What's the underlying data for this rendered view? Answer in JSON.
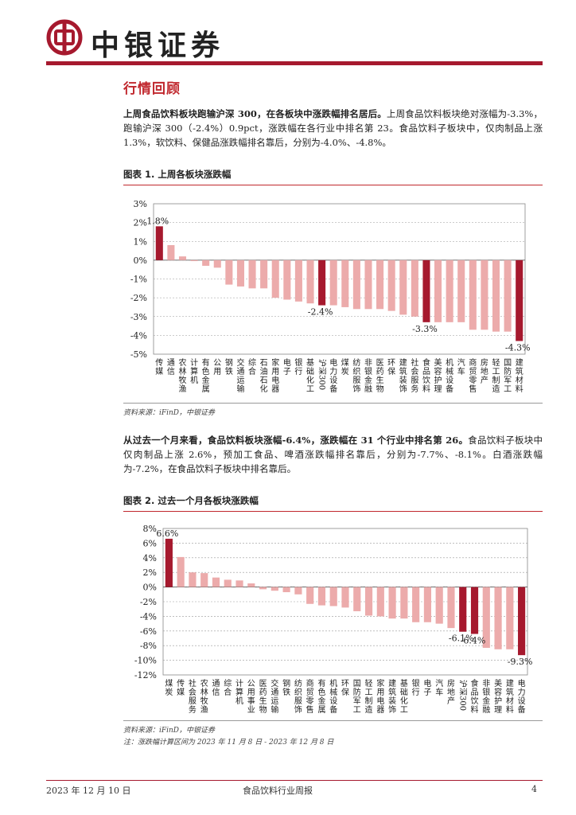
{
  "header": {
    "brand": "中银证券",
    "colors": {
      "brand_red": "#a6192e"
    }
  },
  "section_title": "行情回顾",
  "para1": {
    "bold": "上周食品饮料板块跑输沪深 300，在各板块中涨跌幅排名居后。",
    "text": "上周食品饮料板块绝对涨幅为-3.3%，跑输沪深 300（-2.4%）0.9pct，涨跌幅在各行业中排名第 23。食品饮料子板块中，仅肉制品上涨 1.3%，软饮料、保健品涨跌幅排名靠后，分别为-4.0%、-4.8%。"
  },
  "fig1": {
    "title": "图表 1. 上周各板块涨跌幅",
    "source": "资料来源：iFinD，中银证券"
  },
  "para2": {
    "bold": "从过去一个月来看，食品饮料板块涨幅-6.4%，涨跌幅在 31 个行业中排名第 26。",
    "text": "食品饮料子板块中仅肉制品上涨 2.6%，预加工食品、啤酒涨跌幅排名靠后，分别为-7.7%、-8.1%。白酒涨跌幅为-7.2%，在食品饮料子板块中排名靠后。"
  },
  "fig2": {
    "title": "图表 2. 过去一个月各板块涨跌幅",
    "source": "资料来源：iFinD，中银证券",
    "note": "注：涨跌幅计算区间为 2023 年 11 月 8 日 - 2023 年 12 月 8 日"
  },
  "footer": {
    "date": "2023 年 12 月 10 日",
    "center": "食品饮料行业周报",
    "page": "4"
  },
  "chart_data": [
    {
      "type": "bar",
      "title": "上周各板块涨跌幅",
      "ylim": [
        -5,
        3
      ],
      "yticks": [
        "3%",
        "2%",
        "1%",
        "0%",
        "-1%",
        "-2%",
        "-3%",
        "-4%",
        "-5%"
      ],
      "categories": [
        "传媒",
        "通信",
        "农林牧渔",
        "计算机",
        "有色金属",
        "公用",
        "钢铁",
        "交通运输",
        "综合",
        "石油石化",
        "家用电器",
        "电子",
        "银行",
        "基础化工",
        "沪深300",
        "电力设备",
        "煤炭",
        "纺织服饰",
        "非银金融",
        "医药生物",
        "环保",
        "建筑装饰",
        "社会服务",
        "食品饮料",
        "美容护理",
        "机械设备",
        "汽车",
        "商贸零售",
        "房地产",
        "轻工制造",
        "国防军工",
        "建筑材料"
      ],
      "values": [
        1.8,
        0.8,
        0.2,
        -0.05,
        -0.3,
        -0.4,
        -1.3,
        -1.4,
        -1.5,
        -1.5,
        -2.0,
        -2.1,
        -2.2,
        -2.3,
        -2.4,
        -2.4,
        -2.5,
        -2.6,
        -2.6,
        -2.6,
        -2.7,
        -2.9,
        -3.0,
        -3.3,
        -3.3,
        -3.3,
        -3.3,
        -3.7,
        -3.7,
        -3.8,
        -3.8,
        -4.3
      ],
      "highlight": [
        "传媒",
        "沪深300",
        "食品饮料",
        "建筑材料"
      ],
      "data_labels": [
        {
          "category": "传媒",
          "text": "1.8%"
        },
        {
          "category": "沪深300",
          "text": "-2.4%"
        },
        {
          "category": "食品饮料",
          "text": "-3.3%"
        },
        {
          "category": "建筑材料",
          "text": "-4.3%"
        }
      ],
      "colors": {
        "highlight": "#a6192e",
        "normal": "#ecabab"
      }
    },
    {
      "type": "bar",
      "title": "过去一个月各板块涨跌幅",
      "ylim": [
        -12,
        8
      ],
      "yticks": [
        "8%",
        "6%",
        "4%",
        "2%",
        "0%",
        "-2%",
        "-4%",
        "-6%",
        "-8%",
        "-10%",
        "-12%"
      ],
      "categories": [
        "煤炭",
        "传媒",
        "社会服务",
        "农林牧渔",
        "通信",
        "综合",
        "计算机",
        "公用事业",
        "医药生物",
        "交通运输",
        "钢铁",
        "纺织服饰",
        "商贸零售",
        "有色金属",
        "机械设备",
        "环保",
        "国防军工",
        "轻工制造",
        "家用电器",
        "建筑装饰",
        "基础化工",
        "银行",
        "电子",
        "汽车",
        "房地产",
        "沪深300",
        "食品饮料",
        "非银金融",
        "美容护理",
        "建筑材料",
        "电力设备"
      ],
      "values": [
        6.6,
        4.1,
        2.0,
        1.9,
        1.3,
        1.0,
        0.9,
        0.5,
        -0.3,
        -0.5,
        -0.7,
        -1.0,
        -2.3,
        -2.5,
        -2.6,
        -2.8,
        -3.3,
        -3.9,
        -4.0,
        -4.3,
        -4.3,
        -4.8,
        -4.8,
        -5.0,
        -5.6,
        -6.1,
        -6.4,
        -8.3,
        -8.5,
        -8.5,
        -9.3
      ],
      "highlight": [
        "煤炭",
        "沪深300",
        "食品饮料",
        "电力设备"
      ],
      "data_labels": [
        {
          "category": "煤炭",
          "text": "6.6%"
        },
        {
          "category": "沪深300",
          "text": "-6.1%"
        },
        {
          "category": "食品饮料",
          "text": "-6.4%"
        },
        {
          "category": "电力设备",
          "text": "-9.3%"
        }
      ],
      "colors": {
        "highlight": "#a6192e",
        "normal": "#ecabab"
      }
    }
  ]
}
